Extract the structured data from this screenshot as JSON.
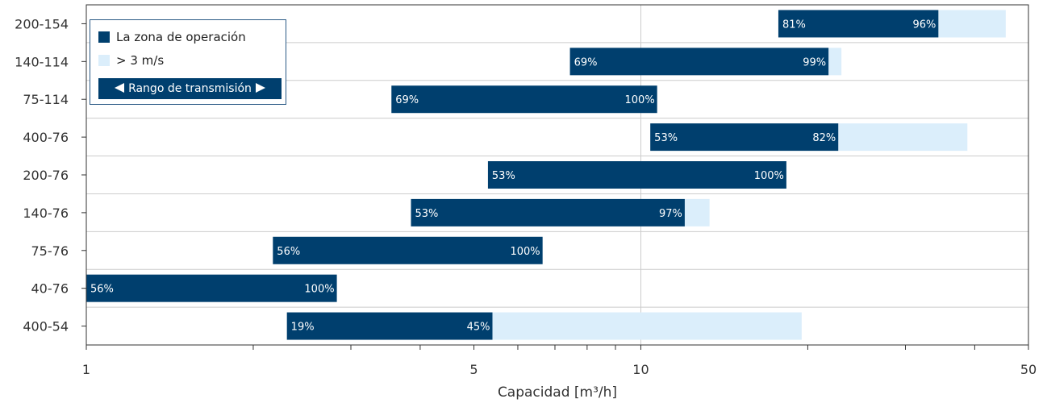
{
  "chart_data": {
    "type": "bar",
    "orientation": "horizontal-range",
    "xscale": "log",
    "xlim": [
      1,
      50
    ],
    "xticks_labeled": [
      1,
      5,
      10,
      50
    ],
    "xlabel": "Capacidad [m³/h]",
    "legend": {
      "placement": "top-left",
      "entries": [
        "La zona de operación",
        "> 3 m/s"
      ],
      "range_label": "Rango de transmisión"
    },
    "colors": {
      "operation": "#003f6e",
      "high_velocity": "#dbeefb",
      "grid": "#cccccc"
    },
    "categories": [
      "200-154",
      "140-114",
      "75-114",
      "400-76",
      "200-76",
      "140-76",
      "75-76",
      "40-76",
      "400-54"
    ],
    "rows": [
      {
        "category": "200-154",
        "start": 17.7,
        "op_end": 34.4,
        "high_end": 45.5,
        "start_label": "81%",
        "op_end_label": "96%"
      },
      {
        "category": "140-114",
        "start": 7.45,
        "op_end": 21.8,
        "high_end": 23.0,
        "start_label": "69%",
        "op_end_label": "99%"
      },
      {
        "category": "75-114",
        "start": 3.55,
        "op_end": 10.7,
        "high_end": 10.7,
        "start_label": "69%",
        "op_end_label": "100%"
      },
      {
        "category": "400-76",
        "start": 10.4,
        "op_end": 22.7,
        "high_end": 38.8,
        "start_label": "53%",
        "op_end_label": "82%"
      },
      {
        "category": "200-76",
        "start": 5.3,
        "op_end": 18.3,
        "high_end": 18.3,
        "start_label": "53%",
        "op_end_label": "100%"
      },
      {
        "category": "140-76",
        "start": 3.85,
        "op_end": 12.0,
        "high_end": 13.3,
        "start_label": "53%",
        "op_end_label": "97%"
      },
      {
        "category": "75-76",
        "start": 2.17,
        "op_end": 6.65,
        "high_end": 6.65,
        "start_label": "56%",
        "op_end_label": "100%"
      },
      {
        "category": "40-76",
        "start": 1.0,
        "op_end": 2.83,
        "high_end": 2.83,
        "start_label": "56%",
        "op_end_label": "100%"
      },
      {
        "category": "400-54",
        "start": 2.3,
        "op_end": 5.4,
        "high_end": 19.5,
        "start_label": "19%",
        "op_end_label": "45%"
      }
    ]
  }
}
